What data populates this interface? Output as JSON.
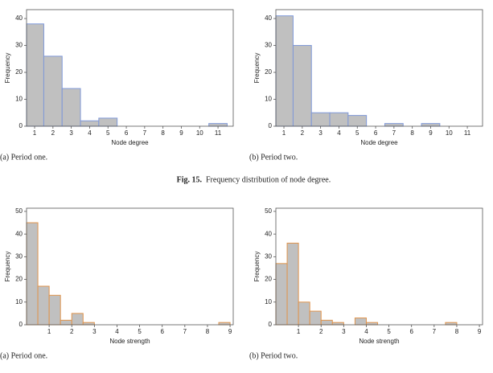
{
  "chart_data": [
    {
      "type": "histogram",
      "xlabel": "Node degree",
      "ylabel": "Frequency",
      "caption": "(a) Period one.",
      "bins": [
        0.5,
        1.5,
        2.5,
        3.5,
        4.5,
        5.5,
        6.5,
        7.5,
        8.5,
        9.5,
        10.5,
        11.5
      ],
      "counts": [
        38,
        26,
        14,
        2,
        3,
        0,
        0,
        0,
        0,
        0,
        1
      ],
      "xlim": [
        0.56,
        11.83
      ],
      "ylim": [
        0,
        43.3
      ],
      "xticks": [
        1,
        2,
        3,
        4,
        5,
        6,
        7,
        8,
        9,
        10,
        11
      ],
      "yticks": [
        0,
        10,
        20,
        30,
        40
      ],
      "color": "#c0c0c0",
      "edgecolor": "#7f98d8"
    },
    {
      "type": "histogram",
      "xlabel": "Node degree",
      "ylabel": "Frequency",
      "caption": "(b) Period two.",
      "bins": [
        0.5,
        1.5,
        2.5,
        3.5,
        4.5,
        5.5,
        6.5,
        7.5,
        8.5,
        9.5,
        10.5,
        11.5
      ],
      "counts": [
        41,
        30,
        5,
        5,
        4,
        0,
        1,
        0,
        1,
        0,
        0
      ],
      "xlim": [
        0.56,
        11.83
      ],
      "ylim": [
        0,
        43.3
      ],
      "xticks": [
        1,
        2,
        3,
        4,
        5,
        6,
        7,
        8,
        9,
        10,
        11
      ],
      "yticks": [
        0,
        10,
        20,
        30,
        40
      ],
      "color": "#c0c0c0",
      "edgecolor": "#7f98d8"
    },
    {
      "type": "histogram",
      "xlabel": "Node strength",
      "ylabel": "Frequency",
      "caption": "(a) Period one.",
      "bins": [
        0,
        0.5,
        1,
        1.5,
        2,
        2.5,
        3,
        3.5,
        4,
        4.5,
        5,
        5.5,
        6,
        6.5,
        7,
        7.5,
        8,
        8.5,
        9
      ],
      "counts": [
        45,
        17,
        13,
        2,
        5,
        1,
        0,
        0,
        0,
        0,
        0,
        0,
        0,
        0,
        0,
        0,
        0,
        1
      ],
      "xlim": [
        0,
        9.14
      ],
      "ylim": [
        0,
        51.4
      ],
      "xticks": [
        1,
        2,
        3,
        4,
        5,
        6,
        7,
        8,
        9
      ],
      "yticks": [
        0,
        10,
        20,
        30,
        40,
        50
      ],
      "color": "#c0c0c0",
      "edgecolor": "#e0944c"
    },
    {
      "type": "histogram",
      "xlabel": "Node strength",
      "ylabel": "Frequency",
      "caption": "(b) Period two.",
      "bins": [
        0,
        0.5,
        1,
        1.5,
        2,
        2.5,
        3,
        3.5,
        4,
        4.5,
        5,
        5.5,
        6,
        6.5,
        7,
        7.5,
        8,
        8.5,
        9
      ],
      "counts": [
        27,
        36,
        10,
        6,
        2,
        1,
        0,
        3,
        1,
        0,
        0,
        0,
        0,
        0,
        0,
        1,
        0,
        0
      ],
      "xlim": [
        0,
        9.14
      ],
      "ylim": [
        0,
        51.4
      ],
      "xticks": [
        1,
        2,
        3,
        4,
        5,
        6,
        7,
        8,
        9
      ],
      "yticks": [
        0,
        10,
        20,
        30,
        40,
        50
      ],
      "color": "#c0c0c0",
      "edgecolor": "#e0944c"
    }
  ],
  "figure_label": "Fig. 15.",
  "figure_caption": "Frequency distribution of node degree."
}
